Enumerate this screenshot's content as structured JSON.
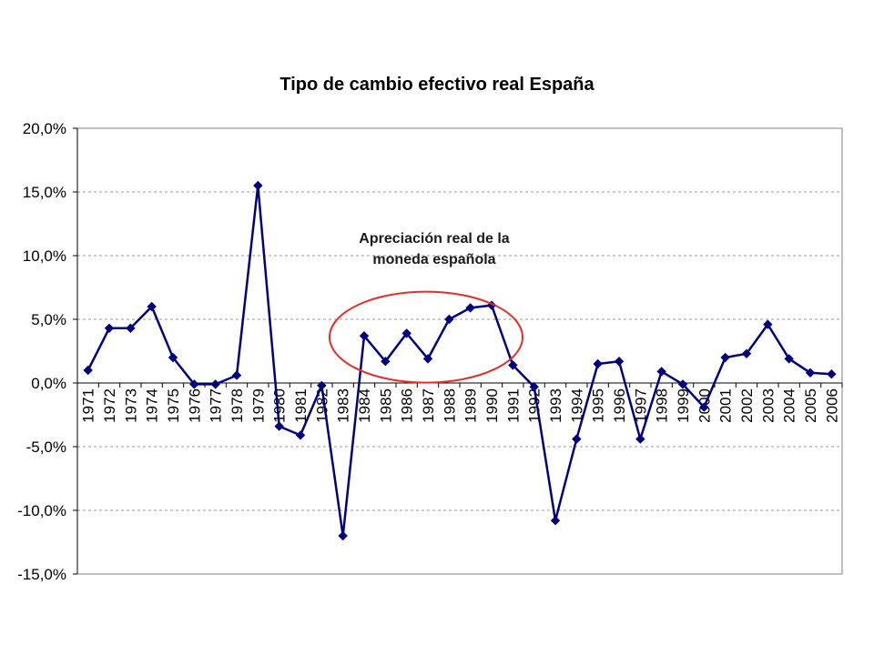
{
  "chart_data": {
    "type": "line",
    "title": "Tipo de cambio efectivo real España",
    "xlabel": "",
    "ylabel": "",
    "ylim": [
      -15,
      20
    ],
    "ytick_step": 5,
    "y_tick_labels": [
      "20,0%",
      "15,0%",
      "10,0%",
      "5,0%",
      "0,0%",
      "-5,0%",
      "-10,0%",
      "-15,0%"
    ],
    "grid": "horizontal-dashed",
    "legend": "none",
    "categories": [
      "1971",
      "1972",
      "1973",
      "1974",
      "1975",
      "1976",
      "1977",
      "1978",
      "1979",
      "1980",
      "1981",
      "1982",
      "1983",
      "1984",
      "1985",
      "1986",
      "1987",
      "1988",
      "1989",
      "1990",
      "1991",
      "1992",
      "1993",
      "1994",
      "1995",
      "1996",
      "1997",
      "1998",
      "1999",
      "2000",
      "2001",
      "2002",
      "2003",
      "2004",
      "2005",
      "2006"
    ],
    "series": [
      {
        "values": [
          1.0,
          4.3,
          4.3,
          6.0,
          2.0,
          -0.1,
          -0.1,
          0.6,
          15.5,
          -3.4,
          -4.1,
          -0.2,
          -12.0,
          3.7,
          1.7,
          3.9,
          1.9,
          5.0,
          5.9,
          6.1,
          1.4,
          -0.3,
          -10.8,
          -4.4,
          1.5,
          1.7,
          -4.4,
          0.9,
          -0.1,
          -1.9,
          2.0,
          2.3,
          4.6,
          1.9,
          0.8,
          0.7
        ],
        "color": "#000080"
      }
    ],
    "annotation": {
      "text_line1": "Apreciación real de la",
      "text_line2": "moneda española",
      "ellipse_color": "#e0302a",
      "spans": [
        "1984",
        "1990"
      ]
    },
    "colors": {
      "line": "#000080",
      "grid": "#999999",
      "frame": "#808080"
    }
  }
}
